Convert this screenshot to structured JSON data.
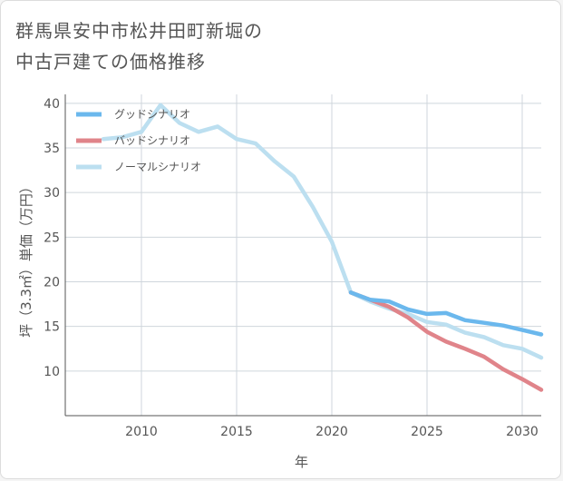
{
  "chart_data": {
    "type": "line",
    "title_lines": [
      "群馬県安中市松井田町新堀の",
      "中古戸建ての価格推移"
    ],
    "xlabel": "年",
    "ylabel": "坪（3.3㎡）単価（万円）",
    "xlim": [
      2006,
      2031
    ],
    "ylim": [
      5,
      41
    ],
    "x_ticks": [
      2010,
      2015,
      2020,
      2025,
      2030
    ],
    "y_ticks": [
      10,
      15,
      20,
      25,
      30,
      35,
      40
    ],
    "grid": true,
    "legend_position": "top-left",
    "series": [
      {
        "name": "グッドシナリオ",
        "color": "#6bb8ed",
        "points": [
          [
            2021,
            18.8
          ],
          [
            2022,
            18.0
          ],
          [
            2023,
            17.8
          ],
          [
            2024,
            16.9
          ],
          [
            2025,
            16.4
          ],
          [
            2026,
            16.5
          ],
          [
            2027,
            15.7
          ],
          [
            2028,
            15.4
          ],
          [
            2029,
            15.1
          ],
          [
            2030,
            14.6
          ],
          [
            2031,
            14.1
          ]
        ]
      },
      {
        "name": "バッドシナリオ",
        "color": "#e0848a",
        "points": [
          [
            2021,
            18.8
          ],
          [
            2022,
            18.0
          ],
          [
            2023,
            17.2
          ],
          [
            2024,
            16.0
          ],
          [
            2025,
            14.4
          ],
          [
            2026,
            13.3
          ],
          [
            2027,
            12.5
          ],
          [
            2028,
            11.6
          ],
          [
            2029,
            10.2
          ],
          [
            2030,
            9.1
          ],
          [
            2031,
            7.9
          ]
        ]
      },
      {
        "name": "ノーマルシナリオ",
        "color": "#bcdff0",
        "points": [
          [
            2008,
            36.0
          ],
          [
            2009,
            36.2
          ],
          [
            2010,
            36.8
          ],
          [
            2011,
            39.8
          ],
          [
            2012,
            37.8
          ],
          [
            2013,
            36.8
          ],
          [
            2014,
            37.4
          ],
          [
            2015,
            36.0
          ],
          [
            2016,
            35.5
          ],
          [
            2017,
            33.5
          ],
          [
            2018,
            31.8
          ],
          [
            2019,
            28.4
          ],
          [
            2020,
            24.5
          ],
          [
            2021,
            18.8
          ],
          [
            2022,
            17.8
          ],
          [
            2023,
            17.0
          ],
          [
            2024,
            16.4
          ],
          [
            2025,
            15.5
          ],
          [
            2026,
            15.2
          ],
          [
            2027,
            14.3
          ],
          [
            2028,
            13.8
          ],
          [
            2029,
            12.9
          ],
          [
            2030,
            12.5
          ],
          [
            2031,
            11.5
          ]
        ]
      }
    ]
  }
}
